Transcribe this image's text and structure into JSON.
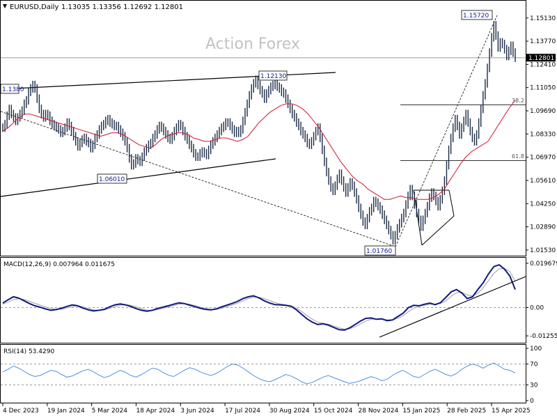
{
  "header": {
    "symbol_tf": "EURUSD,Daily",
    "ohlc": "1.13035 1.13356 1.12692 1.12801"
  },
  "watermark": "Action Forex",
  "colors": {
    "bars": "#1a2a44",
    "ma": "#d0152a",
    "macd_main": "#101880",
    "macd_signal": "#a0a0a0",
    "rsi": "#4f8fe0",
    "grid": "#9a9a9a",
    "frame": "#000000"
  },
  "chart_data": [
    {
      "type": "line",
      "title": "EURUSD,Daily",
      "price_scale": [
        "1.15130",
        "1.13770",
        "1.12410",
        "1.11050",
        "1.09690",
        "1.08330",
        "1.06970",
        "1.05610",
        "1.04250",
        "1.02890",
        "1.01530"
      ],
      "current_price": "1.12801",
      "ylim": [
        1.012,
        1.161
      ],
      "x_labels": [
        "4 Dec 2023",
        "19 Jan 2024",
        "5 Mar 2024",
        "18 Apr 2024",
        "3 Jun 2024",
        "17 Jul 2024",
        "30 Aug 2024",
        "15 Oct 2024",
        "28 Nov 2024",
        "15 Jan 2025",
        "28 Feb 2025",
        "15 Apr 2025"
      ],
      "series": [
        {
          "values": [
            1.087,
            1.089,
            1.094,
            1.098,
            1.095,
            1.093,
            1.091,
            1.093,
            1.095,
            1.097,
            1.101,
            1.103,
            1.108,
            1.11,
            1.112,
            1.11,
            1.104,
            1.098,
            1.095,
            1.093,
            1.095,
            1.094,
            1.091,
            1.089,
            1.088,
            1.087,
            1.086,
            1.084,
            1.085,
            1.087,
            1.09,
            1.088,
            1.085,
            1.082,
            1.079,
            1.076,
            1.078,
            1.08,
            1.081,
            1.079,
            1.078,
            1.075,
            1.077,
            1.081,
            1.083,
            1.086,
            1.088,
            1.089,
            1.091,
            1.092,
            1.09,
            1.089,
            1.088,
            1.088,
            1.086,
            1.084,
            1.082,
            1.079,
            1.075,
            1.069,
            1.065,
            1.066,
            1.069,
            1.068,
            1.067,
            1.07,
            1.073,
            1.075,
            1.077,
            1.078,
            1.081,
            1.083,
            1.086,
            1.088,
            1.087,
            1.085,
            1.083,
            1.081,
            1.08,
            1.082,
            1.085,
            1.087,
            1.089,
            1.088,
            1.085,
            1.082,
            1.08,
            1.077,
            1.075,
            1.072,
            1.07,
            1.07,
            1.072,
            1.073,
            1.072,
            1.071,
            1.074,
            1.077,
            1.079,
            1.081,
            1.083,
            1.085,
            1.087,
            1.088,
            1.09,
            1.09,
            1.088,
            1.086,
            1.084,
            1.085,
            1.084,
            1.086,
            1.091,
            1.096,
            1.101,
            1.106,
            1.11,
            1.113,
            1.115,
            1.112,
            1.109,
            1.107,
            1.104,
            1.107,
            1.109,
            1.111,
            1.112,
            1.113,
            1.111,
            1.11,
            1.108,
            1.107,
            1.104,
            1.101,
            1.098,
            1.095,
            1.093,
            1.09,
            1.088,
            1.085,
            1.083,
            1.081,
            1.078,
            1.077,
            1.079,
            1.082,
            1.085,
            1.087,
            1.081,
            1.074,
            1.067,
            1.061,
            1.056,
            1.052,
            1.05,
            1.053,
            1.057,
            1.06,
            1.056,
            1.052,
            1.049,
            1.052,
            1.055,
            1.053,
            1.049,
            1.045,
            1.04,
            1.036,
            1.032,
            1.03,
            1.034,
            1.038,
            1.04,
            1.044,
            1.043,
            1.041,
            1.039,
            1.036,
            1.033,
            1.03,
            1.027,
            1.024,
            1.021,
            1.024,
            1.028,
            1.031,
            1.034,
            1.037,
            1.042,
            1.047,
            1.051,
            1.047,
            1.042,
            1.037,
            1.033,
            1.029,
            1.033,
            1.037,
            1.041,
            1.046,
            1.049,
            1.047,
            1.044,
            1.041,
            1.045,
            1.05,
            1.056,
            1.065,
            1.074,
            1.081,
            1.087,
            1.092,
            1.088,
            1.083,
            1.087,
            1.091,
            1.095,
            1.09,
            1.085,
            1.081,
            1.079,
            1.083,
            1.09,
            1.098,
            1.106,
            1.113,
            1.122,
            1.131,
            1.14,
            1.147,
            1.141,
            1.134,
            1.137,
            1.136,
            1.133,
            1.129,
            1.132,
            1.135,
            1.131,
            1.128
          ]
        },
        {
          "type": "line",
          "values": [
            1.085,
            1.087,
            1.09,
            1.093,
            1.095,
            1.095,
            1.094,
            1.093,
            1.092,
            1.091,
            1.09,
            1.089,
            1.088,
            1.087,
            1.086,
            1.085,
            1.084,
            1.083,
            1.082,
            1.083,
            1.084,
            1.084,
            1.083,
            1.081,
            1.079,
            1.077,
            1.076,
            1.075,
            1.077,
            1.08,
            1.082,
            1.083,
            1.084,
            1.084,
            1.083,
            1.081,
            1.08,
            1.079,
            1.079,
            1.08,
            1.081,
            1.081,
            1.08,
            1.079,
            1.08,
            1.082,
            1.086,
            1.09,
            1.093,
            1.096,
            1.098,
            1.1,
            1.101,
            1.101,
            1.1,
            1.098,
            1.095,
            1.091,
            1.087,
            1.082,
            1.077,
            1.072,
            1.067,
            1.063,
            1.059,
            1.056,
            1.054,
            1.051,
            1.049,
            1.047,
            1.045,
            1.045,
            1.046,
            1.047,
            1.046,
            1.046,
            1.045,
            1.045,
            1.045,
            1.046,
            1.048,
            1.051,
            1.056,
            1.061,
            1.066,
            1.07,
            1.073,
            1.075,
            1.077,
            1.079,
            1.084,
            1.089,
            1.094,
            1.099,
            1.103
          ]
        }
      ],
      "annotations": [
        "1.1380",
        "1.12130",
        "1.06010",
        "1.01760",
        "1.15720"
      ],
      "fib_levels": [
        "38.2",
        "61.8"
      ]
    },
    {
      "type": "line",
      "title": "MACD(12,26,9) 0.007964 0.011675",
      "y_ticks": [
        "0.019679",
        "0.00",
        "-0.012552"
      ],
      "ylim": [
        -0.015,
        0.0215
      ],
      "series": [
        {
          "values": [
            0.002,
            0.0035,
            0.0048,
            0.0042,
            0.003,
            0.0018,
            0.0008,
            0.0002,
            -0.0006,
            -0.0012,
            -0.0009,
            -0.0003,
            0.0005,
            0.0012,
            0.0008,
            -0.0002,
            -0.001,
            -0.0015,
            -0.0012,
            -0.0008,
            0.0003,
            0.0012,
            0.0016,
            0.0012,
            0.0005,
            -0.0005,
            -0.0012,
            -0.0016,
            -0.0012,
            -0.0004,
            0.0002,
            0.0008,
            0.0015,
            0.0021,
            0.0018,
            0.0011,
            0.0004,
            -0.0003,
            -0.0008,
            -0.001,
            -0.0006,
            0.0003,
            0.0011,
            0.0019,
            0.0028,
            0.004,
            0.0048,
            0.0052,
            0.0043,
            0.003,
            0.002,
            0.0013,
            0.0012,
            0.001,
            0.0006,
            -0.001,
            -0.003,
            -0.005,
            -0.0065,
            -0.0075,
            -0.0072,
            -0.0078,
            -0.0088,
            -0.0098,
            -0.01,
            -0.009,
            -0.0075,
            -0.006,
            -0.0048,
            -0.0046,
            -0.0052,
            -0.005,
            -0.0058,
            -0.0055,
            -0.004,
            -0.0025,
            0.0,
            0.001,
            0.0008,
            0.0015,
            0.002,
            0.0013,
            0.0022,
            0.0045,
            0.007,
            0.008,
            0.0065,
            0.004,
            0.0048,
            0.008,
            0.011,
            0.015,
            0.0182,
            0.019,
            0.017,
            0.014,
            0.008
          ]
        },
        {
          "values": [
            0.0015,
            0.0025,
            0.0035,
            0.004,
            0.0036,
            0.0028,
            0.0019,
            0.0011,
            0.0003,
            -0.0004,
            -0.0008,
            -0.0007,
            -0.0002,
            0.0005,
            0.0008,
            0.0004,
            -0.0004,
            -0.001,
            -0.0012,
            -0.001,
            -0.0004,
            0.0004,
            0.0011,
            0.0013,
            0.001,
            0.0003,
            -0.0005,
            -0.0011,
            -0.0013,
            -0.0009,
            -0.0003,
            0.0003,
            0.0009,
            0.0015,
            0.0018,
            0.0015,
            0.0009,
            0.0002,
            -0.0004,
            -0.0008,
            -0.0008,
            -0.0003,
            0.0004,
            0.0012,
            0.002,
            0.003,
            0.004,
            0.0046,
            0.0046,
            0.004,
            0.0031,
            0.0022,
            0.0016,
            0.0012,
            0.0008,
            -0.0002,
            -0.0018,
            -0.0036,
            -0.0052,
            -0.0064,
            -0.007,
            -0.0074,
            -0.0082,
            -0.009,
            -0.0096,
            -0.0094,
            -0.0085,
            -0.0072,
            -0.006,
            -0.0052,
            -0.0051,
            -0.0051,
            -0.0054,
            -0.0055,
            -0.0048,
            -0.0036,
            -0.0018,
            -0.0002,
            0.0005,
            0.001,
            0.0015,
            0.0015,
            0.0018,
            0.003,
            0.005,
            0.0066,
            0.0068,
            0.0056,
            0.0052,
            0.0064,
            0.0088,
            0.012,
            0.0152,
            0.0172,
            0.0174,
            0.016,
            0.0117
          ]
        }
      ]
    },
    {
      "type": "line",
      "title": "RSI(14) 53.4290",
      "y_ticks": [
        "100",
        "70",
        "30",
        "0"
      ],
      "ylim": [
        0,
        100
      ],
      "levels": [
        70,
        30
      ],
      "series": [
        {
          "values": [
            55,
            60,
            66,
            62,
            56,
            50,
            46,
            48,
            53,
            58,
            56,
            50,
            45,
            47,
            52,
            57,
            60,
            55,
            49,
            44,
            47,
            53,
            58,
            54,
            48,
            45,
            50,
            56,
            62,
            60,
            54,
            49,
            46,
            52,
            58,
            63,
            60,
            55,
            51,
            48,
            52,
            58,
            65,
            70,
            68,
            62,
            55,
            48,
            42,
            38,
            36,
            40,
            45,
            50,
            47,
            42,
            36,
            32,
            35,
            40,
            45,
            48,
            44,
            40,
            36,
            33,
            35,
            38,
            42,
            46,
            43,
            38,
            41,
            48,
            54,
            58,
            52,
            46,
            44,
            50,
            56,
            60,
            55,
            50,
            47,
            52,
            60,
            66,
            70,
            67,
            62,
            68,
            72,
            66,
            60,
            58,
            53
          ]
        }
      ]
    }
  ]
}
